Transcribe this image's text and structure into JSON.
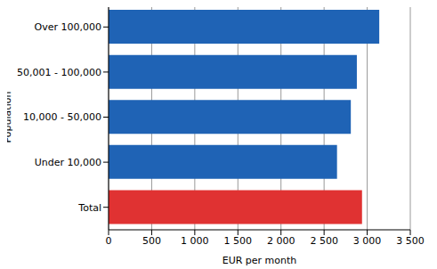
{
  "chart_data": {
    "type": "bar",
    "orientation": "horizontal",
    "categories": [
      "Over 100,000",
      "50,001 - 100,000",
      "10,000 - 50,000",
      "Under 10,000",
      "Total"
    ],
    "values": [
      3140,
      2880,
      2810,
      2650,
      2940
    ],
    "colors": [
      "#1f63b5",
      "#1f63b5",
      "#1f63b5",
      "#1f63b5",
      "#e03232"
    ],
    "xlim": [
      0,
      3500
    ],
    "xticks": [
      0,
      500,
      {
        "value": 1000,
        "label": "1 000"
      },
      {
        "value": 1500,
        "label": "1 500"
      },
      {
        "value": 2000,
        "label": "2 000"
      },
      {
        "value": 2500,
        "label": "2 500"
      },
      {
        "value": 3000,
        "label": "3 000"
      },
      {
        "value": 3500,
        "label": "3 500"
      }
    ],
    "xlabel": "EUR per month",
    "ylabel": "Population",
    "grid": true
  }
}
